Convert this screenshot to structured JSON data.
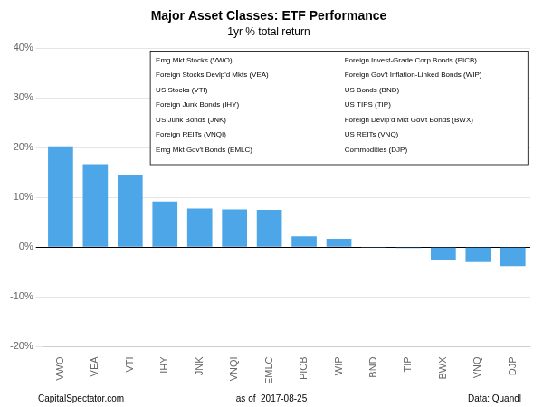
{
  "chart_data": {
    "type": "bar",
    "title": "Major Asset Classes: ETF Performance",
    "subtitle": "1yr % total return",
    "categories": [
      "VWO",
      "VEA",
      "VTI",
      "IHY",
      "JNK",
      "VNQI",
      "EMLC",
      "PICB",
      "WIP",
      "BND",
      "TIP",
      "BWX",
      "VNQ",
      "DJP"
    ],
    "values": [
      20.3,
      16.7,
      14.5,
      9.2,
      7.8,
      7.6,
      7.5,
      2.2,
      1.7,
      -0.1,
      -0.15,
      -2.5,
      -3.0,
      -3.8
    ],
    "color": "#4da6e8",
    "ylim": [
      -20,
      40
    ],
    "yticks": [
      {
        "value": -20,
        "label": "-20%"
      },
      {
        "value": -10,
        "label": "-10%"
      },
      {
        "value": 0,
        "label": "0%"
      },
      {
        "value": 10,
        "label": "10%"
      },
      {
        "value": 20,
        "label": "20%"
      },
      {
        "value": 30,
        "label": "30%"
      },
      {
        "value": 40,
        "label": "40%"
      }
    ],
    "grid": true,
    "annotations": [
      [
        "Emg Mkt Stocks (VWO)",
        "Foreign Stocks Devlp'd Mkts (VEA)",
        "US Stocks (VTI)",
        "Foreign Junk Bonds (IHY)",
        "US Junk Bonds (JNK)",
        "Foreign REITs (VNQI)",
        "Emg Mkt Gov't Bonds (EMLC)"
      ],
      [
        "Foreign Invest-Grade Corp Bonds (PICB)",
        "Foreign Gov't Inflation-Linked Bonds (WIP)",
        "US Bonds (BND)",
        "US TIPS (TIP)",
        "Foreign Devlp'd Mkt Gov't Bonds (BWX)",
        "US REITs (VNQ)",
        "Commodities (DJP)"
      ]
    ],
    "footer": [
      "CapitalSpectator.com",
      "as of  2017-08-25",
      "Data: Quandl"
    ]
  }
}
